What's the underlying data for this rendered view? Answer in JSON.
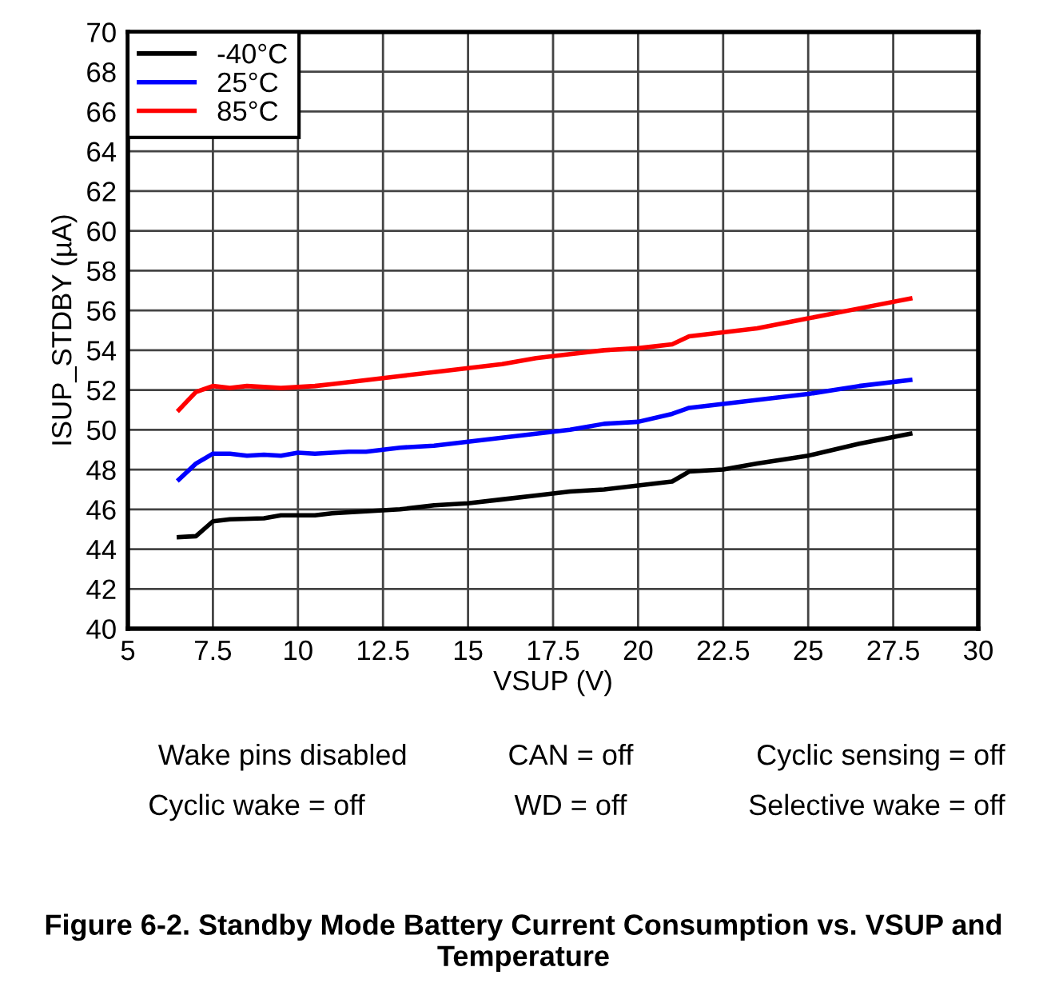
{
  "chart_data": {
    "type": "line",
    "xlabel": "VSUP (V)",
    "ylabel": "ISUP_STDBY (µA)",
    "xlim": [
      5,
      30
    ],
    "xticks": [
      5,
      7.5,
      10,
      12.5,
      15,
      17.5,
      20,
      22.5,
      25,
      27.5,
      30
    ],
    "ylim": [
      40,
      70
    ],
    "yticks": [
      40,
      42,
      44,
      46,
      48,
      50,
      52,
      54,
      56,
      58,
      60,
      62,
      64,
      66,
      68,
      70
    ],
    "grid": true,
    "legend": "top left",
    "marker": "none",
    "line_style": "solid",
    "series": [
      {
        "name": "-40°C",
        "color": "#000000",
        "x": [
          6.5,
          7,
          7.5,
          8,
          9,
          9.5,
          10.5,
          11,
          12,
          13,
          14,
          15,
          16,
          17,
          18,
          19,
          20,
          21,
          21.5,
          22.5,
          23.5,
          25,
          26.5,
          28
        ],
        "values": [
          44.6,
          44.65,
          45.4,
          45.5,
          45.55,
          45.7,
          45.7,
          45.8,
          45.9,
          46.0,
          46.2,
          46.3,
          46.5,
          46.7,
          46.9,
          47.0,
          47.2,
          47.4,
          47.9,
          48.0,
          48.3,
          48.7,
          49.3,
          49.8
        ]
      },
      {
        "name": "25°C",
        "color": "#0000ff",
        "x": [
          6.5,
          7,
          7.5,
          8,
          8.5,
          9,
          9.5,
          10,
          10.5,
          11.5,
          12,
          13,
          14,
          15,
          16,
          17,
          18,
          19,
          20,
          21,
          21.5,
          22.5,
          23.5,
          25,
          26.5,
          28
        ],
        "values": [
          47.5,
          48.3,
          48.8,
          48.8,
          48.7,
          48.75,
          48.7,
          48.85,
          48.8,
          48.9,
          48.9,
          49.1,
          49.2,
          49.4,
          49.6,
          49.8,
          50.0,
          50.3,
          50.4,
          50.8,
          51.1,
          51.3,
          51.5,
          51.8,
          52.2,
          52.5
        ]
      },
      {
        "name": "85°C",
        "color": "#ff0000",
        "x": [
          6.5,
          7,
          7.5,
          8,
          8.5,
          9.5,
          10.5,
          11,
          12,
          12.5,
          13,
          14,
          15,
          16,
          17,
          18,
          19,
          20,
          21,
          21.5,
          22.5,
          23.5,
          25,
          26.5,
          28
        ],
        "values": [
          51.0,
          51.9,
          52.2,
          52.1,
          52.2,
          52.1,
          52.2,
          52.3,
          52.5,
          52.6,
          52.7,
          52.9,
          53.1,
          53.3,
          53.6,
          53.8,
          54.0,
          54.1,
          54.3,
          54.7,
          54.9,
          55.1,
          55.6,
          56.1,
          56.6
        ]
      }
    ],
    "annotations": [
      "Wake pins disabled",
      "CAN = off",
      "Cyclic sensing = off",
      "Cyclic wake = off",
      "WD = off",
      "Selective wake = off",
      "Figure 6-2. Standby Mode Battery Current Consumption vs. VSUP and Temperature"
    ]
  }
}
